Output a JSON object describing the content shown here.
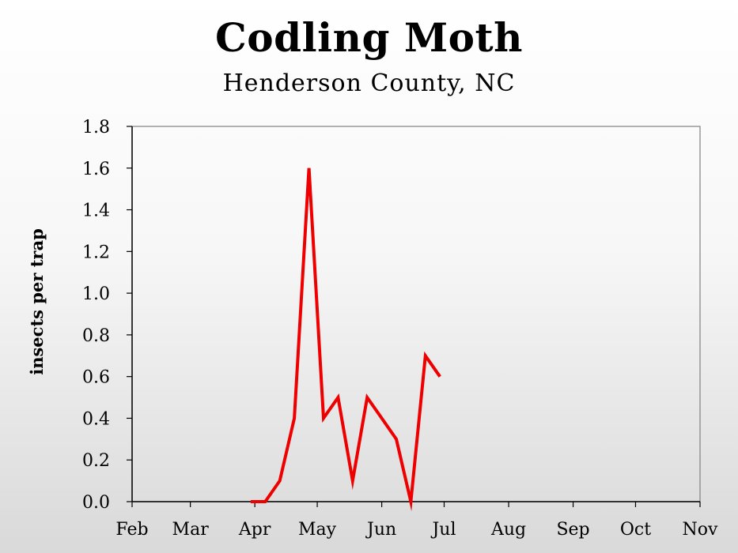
{
  "chart_data": {
    "type": "line",
    "title": "Codling Moth",
    "subtitle": "Henderson County, NC",
    "ylabel": "insects per trap",
    "xlabel": "",
    "ylim": [
      0,
      1.8
    ],
    "y_ticks": [
      "0.0",
      "0.2",
      "0.4",
      "0.6",
      "0.8",
      "1.0",
      "1.2",
      "1.4",
      "1.6",
      "1.8"
    ],
    "x_tick_labels": [
      "Feb",
      "Mar",
      "Apr",
      "May",
      "Jun",
      "Jul",
      "Aug",
      "Sep",
      "Oct",
      "Nov"
    ],
    "x_range": [
      "Feb 1",
      "Nov 1"
    ],
    "grid": false,
    "series": [
      {
        "color": "#ee0000",
        "x": [
          "Mar 30",
          "Apr 6",
          "Apr 13",
          "Apr 20",
          "Apr 27",
          "May 4",
          "May 11",
          "May 18",
          "May 25",
          "Jun 1",
          "Jun 8",
          "Jun 15",
          "Jun 22",
          "Jun 29"
        ],
        "y": [
          0.0,
          0.0,
          0.1,
          0.4,
          1.6,
          0.4,
          0.5,
          0.1,
          0.5,
          0.4,
          0.3,
          0.0,
          0.7,
          0.6
        ]
      }
    ]
  }
}
